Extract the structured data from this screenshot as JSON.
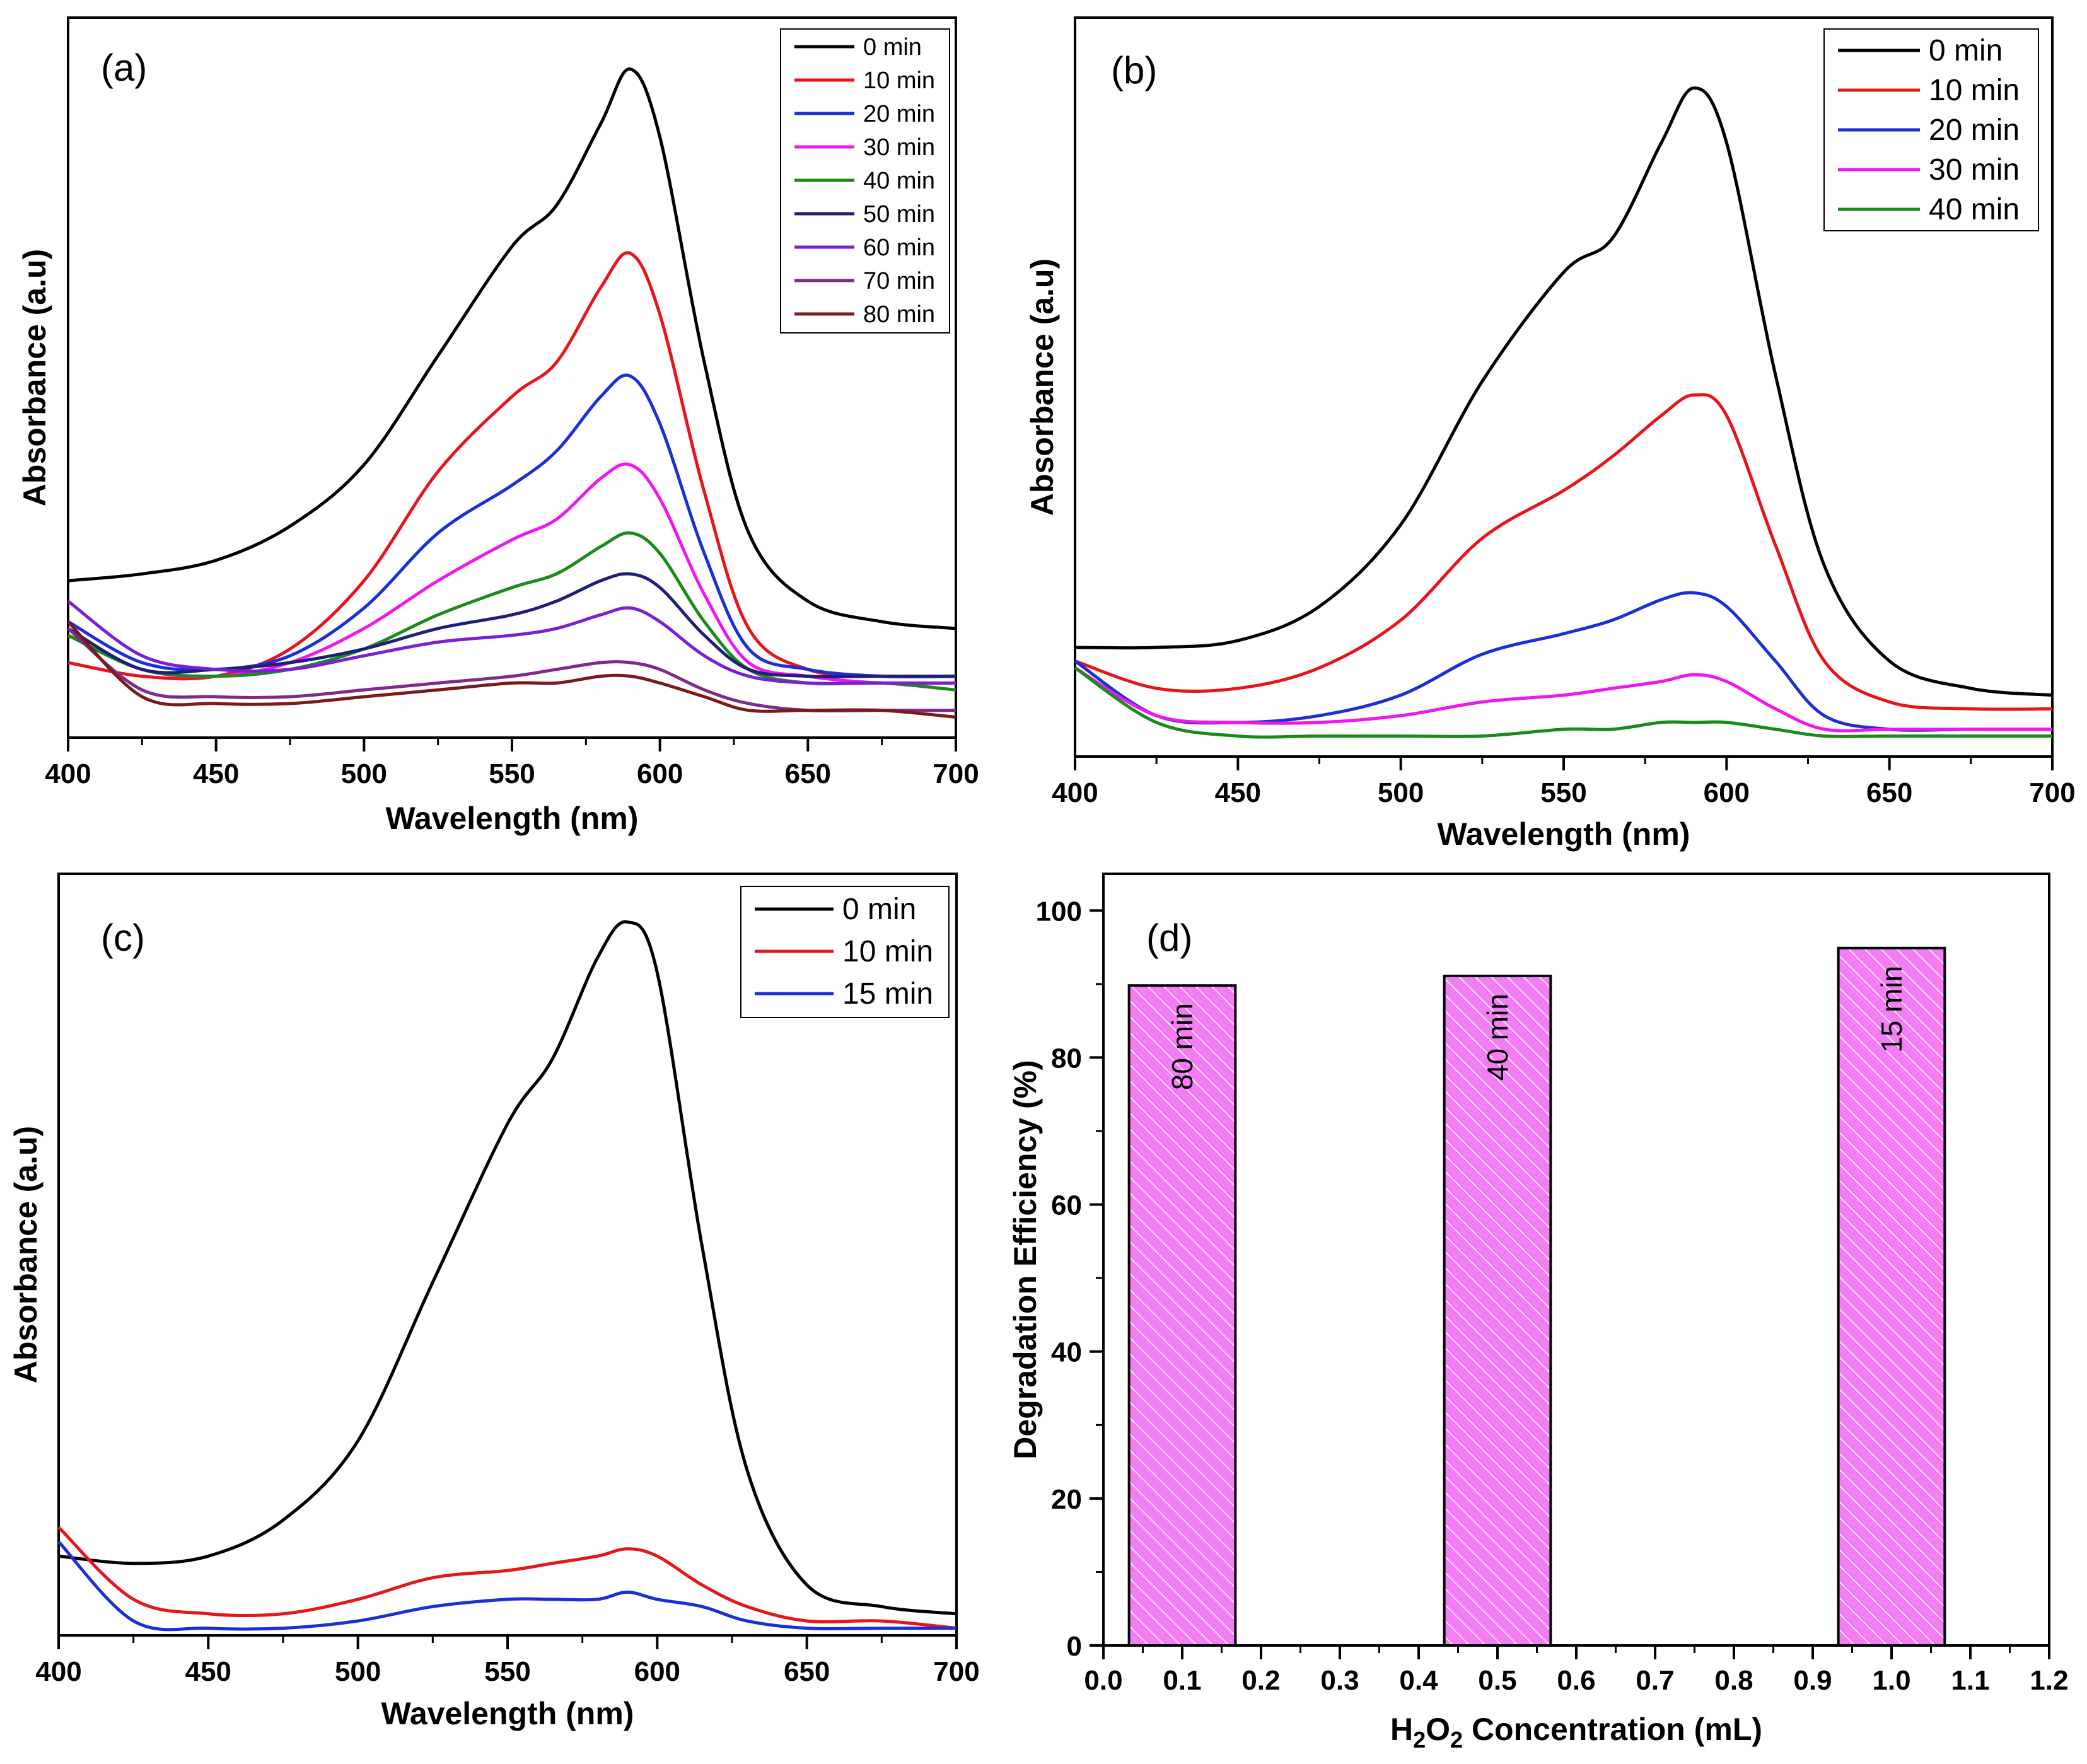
{
  "figure": "UV-vis absorption spectra and degradation efficiency",
  "colors": {
    "0 min": "#000000",
    "10 min": "#e8141b",
    "20 min": "#1c2fd4",
    "30 min": "#f016f0",
    "40 min": "#1a8a1a",
    "50 min": "#1f1f7a",
    "60 min": "#7a1fd6",
    "70 min": "#7e2a8a",
    "80 min": "#7a1a1a",
    "15 min": "#1c2fd4",
    "bar_fill": "#f47cf4",
    "bar_hatch": "#ffffff"
  },
  "chart_data": [
    {
      "panel_label": "(a)",
      "type": "line",
      "title": "",
      "xlabel": "Wavelength (nm)",
      "ylabel": "Absorbance (a.u)",
      "xlim": [
        400,
        700
      ],
      "ylim": [
        0,
        1.0
      ],
      "xticks": [
        "400",
        "450",
        "500",
        "550",
        "600",
        "650",
        "700"
      ],
      "x": [
        400,
        425,
        450,
        475,
        500,
        525,
        550,
        565,
        580,
        590,
        600,
        615,
        630,
        650,
        675,
        700
      ],
      "legend_position": "top-right",
      "series": [
        {
          "name": "0 min",
          "values": [
            0.23,
            0.24,
            0.26,
            0.31,
            0.4,
            0.56,
            0.72,
            0.78,
            0.9,
            0.98,
            0.88,
            0.55,
            0.3,
            0.2,
            0.17,
            0.16
          ]
        },
        {
          "name": "10 min",
          "values": [
            0.11,
            0.09,
            0.09,
            0.13,
            0.23,
            0.39,
            0.5,
            0.55,
            0.66,
            0.71,
            0.62,
            0.36,
            0.16,
            0.1,
            0.09,
            0.09
          ]
        },
        {
          "name": "20 min",
          "values": [
            0.17,
            0.11,
            0.1,
            0.12,
            0.19,
            0.3,
            0.37,
            0.42,
            0.5,
            0.53,
            0.46,
            0.27,
            0.13,
            0.1,
            0.09,
            0.09
          ]
        },
        {
          "name": "30 min",
          "values": [
            0.15,
            0.1,
            0.09,
            0.11,
            0.16,
            0.23,
            0.29,
            0.32,
            0.38,
            0.4,
            0.35,
            0.21,
            0.11,
            0.09,
            0.08,
            0.08
          ]
        },
        {
          "name": "40 min",
          "values": [
            0.15,
            0.1,
            0.09,
            0.1,
            0.13,
            0.18,
            0.22,
            0.24,
            0.28,
            0.3,
            0.27,
            0.17,
            0.1,
            0.08,
            0.08,
            0.07
          ]
        },
        {
          "name": "50 min",
          "values": [
            0.16,
            0.1,
            0.1,
            0.11,
            0.13,
            0.16,
            0.18,
            0.2,
            0.23,
            0.24,
            0.22,
            0.15,
            0.1,
            0.09,
            0.09,
            0.09
          ]
        },
        {
          "name": "60 min",
          "values": [
            0.2,
            0.12,
            0.1,
            0.1,
            0.12,
            0.14,
            0.15,
            0.16,
            0.18,
            0.19,
            0.17,
            0.12,
            0.09,
            0.08,
            0.08,
            0.08
          ]
        },
        {
          "name": "70 min",
          "values": [
            0.16,
            0.07,
            0.06,
            0.06,
            0.07,
            0.08,
            0.09,
            0.1,
            0.11,
            0.11,
            0.1,
            0.07,
            0.05,
            0.04,
            0.04,
            0.04
          ]
        },
        {
          "name": "80 min",
          "values": [
            0.17,
            0.06,
            0.05,
            0.05,
            0.06,
            0.07,
            0.08,
            0.08,
            0.09,
            0.09,
            0.08,
            0.06,
            0.04,
            0.04,
            0.04,
            0.03
          ]
        }
      ]
    },
    {
      "panel_label": "(b)",
      "type": "line",
      "title": "",
      "xlabel": "Wavelength (nm)",
      "ylabel": "Absorbance (a.u)",
      "xlim": [
        400,
        700
      ],
      "ylim": [
        0,
        1.0
      ],
      "xticks": [
        "400",
        "450",
        "500",
        "550",
        "600",
        "650",
        "700"
      ],
      "x": [
        400,
        425,
        450,
        475,
        500,
        525,
        550,
        565,
        580,
        590,
        600,
        615,
        630,
        650,
        675,
        700
      ],
      "legend_position": "top-right",
      "series": [
        {
          "name": "0 min",
          "values": [
            0.16,
            0.16,
            0.17,
            0.22,
            0.34,
            0.55,
            0.71,
            0.76,
            0.9,
            0.98,
            0.9,
            0.56,
            0.28,
            0.14,
            0.1,
            0.09
          ]
        },
        {
          "name": "10 min",
          "values": [
            0.14,
            0.1,
            0.1,
            0.13,
            0.2,
            0.32,
            0.39,
            0.44,
            0.5,
            0.53,
            0.5,
            0.31,
            0.14,
            0.08,
            0.07,
            0.07
          ]
        },
        {
          "name": "20 min",
          "values": [
            0.14,
            0.06,
            0.05,
            0.06,
            0.09,
            0.15,
            0.18,
            0.2,
            0.23,
            0.24,
            0.22,
            0.14,
            0.06,
            0.04,
            0.04,
            0.04
          ]
        },
        {
          "name": "30 min",
          "values": [
            0.13,
            0.06,
            0.05,
            0.05,
            0.06,
            0.08,
            0.09,
            0.1,
            0.11,
            0.12,
            0.11,
            0.07,
            0.04,
            0.04,
            0.04,
            0.04
          ]
        },
        {
          "name": "40 min",
          "values": [
            0.13,
            0.05,
            0.03,
            0.03,
            0.03,
            0.03,
            0.04,
            0.04,
            0.05,
            0.05,
            0.05,
            0.04,
            0.03,
            0.03,
            0.03,
            0.03
          ]
        }
      ]
    },
    {
      "panel_label": "(c)",
      "type": "line",
      "title": "",
      "xlabel": "Wavelength (nm)",
      "ylabel": "Absorbance (a.u)",
      "xlim": [
        400,
        700
      ],
      "ylim": [
        0,
        1.0
      ],
      "xticks": [
        "400",
        "450",
        "500",
        "550",
        "600",
        "650",
        "700"
      ],
      "x": [
        400,
        425,
        450,
        475,
        500,
        525,
        550,
        565,
        580,
        590,
        600,
        615,
        630,
        650,
        675,
        700
      ],
      "legend_position": "top-right",
      "series": [
        {
          "name": "0 min",
          "values": [
            0.11,
            0.1,
            0.11,
            0.16,
            0.27,
            0.49,
            0.71,
            0.8,
            0.94,
            0.99,
            0.92,
            0.54,
            0.23,
            0.07,
            0.04,
            0.03
          ]
        },
        {
          "name": "10 min",
          "values": [
            0.15,
            0.05,
            0.03,
            0.03,
            0.05,
            0.08,
            0.09,
            0.1,
            0.11,
            0.12,
            0.11,
            0.07,
            0.04,
            0.02,
            0.02,
            0.01
          ]
        },
        {
          "name": "15 min",
          "values": [
            0.13,
            0.02,
            0.01,
            0.01,
            0.02,
            0.04,
            0.05,
            0.05,
            0.05,
            0.06,
            0.05,
            0.04,
            0.02,
            0.01,
            0.01,
            0.01
          ]
        }
      ]
    },
    {
      "panel_label": "(d)",
      "type": "bar",
      "title": "",
      "xlabel_main": "H",
      "xlabel_sub1": "2",
      "xlabel_mid": "O",
      "xlabel_sub2": "2",
      "xlabel_rest": " Concentration (mL)",
      "ylabel": "Degradation Efficiency (%)",
      "xlim": [
        0.0,
        1.2
      ],
      "ylim": [
        0,
        105
      ],
      "xticks": [
        "0.0",
        "0.1",
        "0.2",
        "0.3",
        "0.4",
        "0.5",
        "0.6",
        "0.7",
        "0.8",
        "0.9",
        "1.0",
        "1.1",
        "1.2"
      ],
      "yticks": [
        "0",
        "20",
        "40",
        "60",
        "80",
        "100"
      ],
      "x": [
        0.1,
        0.5,
        1.0
      ],
      "bar_width": 0.135,
      "values": [
        89.8,
        91.1,
        94.9
      ],
      "bar_labels": [
        "80 min",
        "40 min",
        "15 min"
      ]
    }
  ]
}
